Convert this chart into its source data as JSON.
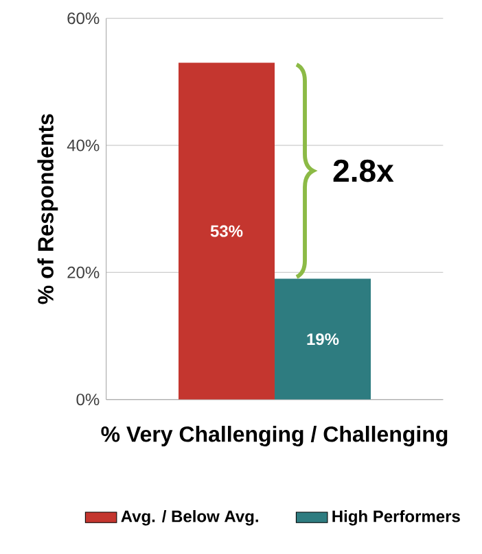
{
  "chart_data": {
    "type": "bar",
    "xlabel": "%  Very Challenging / Challenging",
    "ylabel": "% of Respondents",
    "categories": [
      null
    ],
    "series": [
      {
        "name": "Avg. / Below Avg.",
        "color": "#c4362f",
        "values": [
          53
        ],
        "value_labels": [
          "53%"
        ]
      },
      {
        "name": "High Performers",
        "color": "#2e7c80",
        "values": [
          19
        ],
        "value_labels": [
          "19%"
        ]
      }
    ],
    "ylim": [
      0,
      60
    ],
    "yticks": [
      {
        "value": 0,
        "label": "0%"
      },
      {
        "value": 20,
        "label": "20%"
      },
      {
        "value": 40,
        "label": "40%"
      },
      {
        "value": 60,
        "label": "60%"
      }
    ],
    "grid": "y",
    "legend": "bottom",
    "annotations": [
      "2.8x"
    ]
  }
}
